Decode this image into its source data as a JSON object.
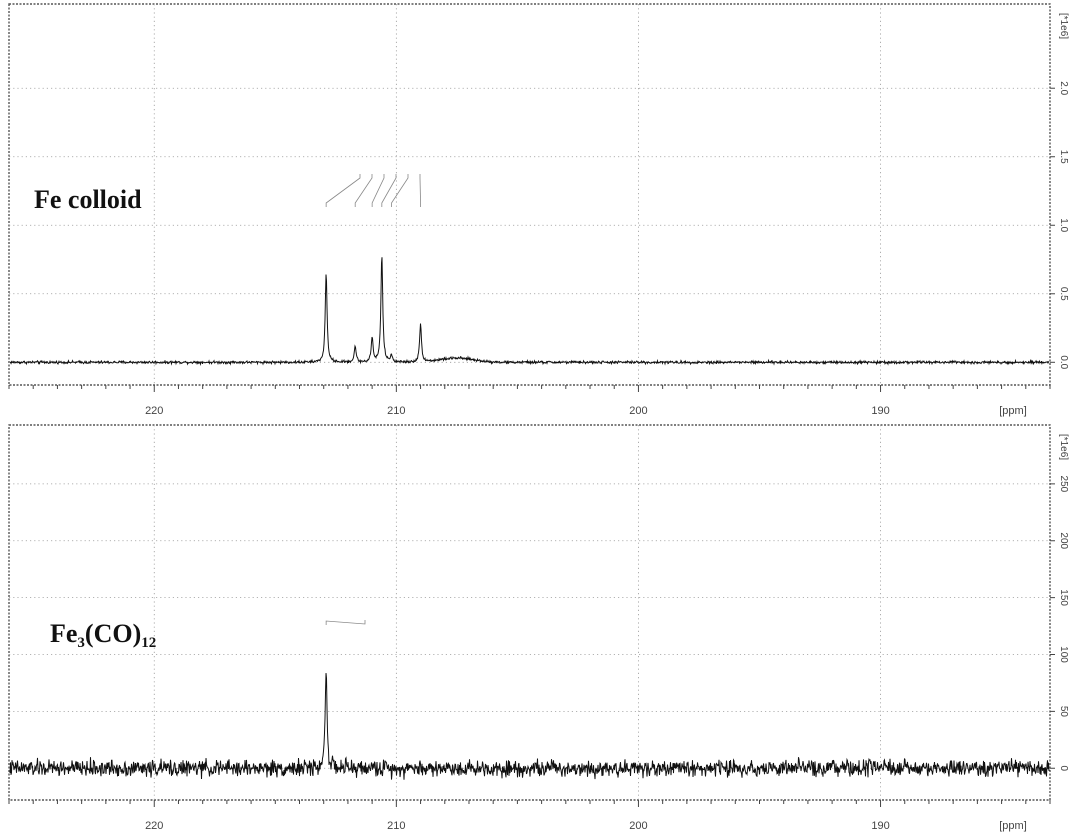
{
  "chart_data": [
    {
      "type": "line",
      "header_line1": "",
      "header_line2": "",
      "sample_label": "Fe colloid",
      "xaxis": {
        "range": [
          226,
          183
        ],
        "reversed": true,
        "ticks": [
          220,
          210,
          200,
          190
        ],
        "tick_labels": [
          "220",
          "210",
          "200",
          "190"
        ],
        "unit_label": "[ppm]"
      },
      "yaxis": {
        "range": [
          -0.1,
          2.6
        ],
        "ticks": [
          0.0,
          0.5,
          1.0,
          1.5,
          2.0
        ],
        "tick_labels": [
          "0.0",
          "0.5",
          "1.0",
          "1.5",
          "2.0"
        ],
        "scale_label": "[*1e6]"
      },
      "grid": true,
      "baseline": 0.0,
      "noise": 0.008,
      "peaks": [
        {
          "ppm": 212.9,
          "intensity": 0.65
        },
        {
          "ppm": 211.7,
          "intensity": 0.12
        },
        {
          "ppm": 211.0,
          "intensity": 0.18
        },
        {
          "ppm": 210.6,
          "intensity": 0.78
        },
        {
          "ppm": 210.2,
          "intensity": 0.05
        },
        {
          "ppm": 209.0,
          "intensity": 0.28
        }
      ],
      "broad_bump": {
        "ppm": 207.5,
        "intensity": 0.03,
        "width": 1.0
      },
      "peak_labels": [
        "",
        "",
        "",
        "",
        "",
        ""
      ]
    },
    {
      "type": "line",
      "header_line1": "",
      "header_line2": "",
      "sample_label": "Fe",
      "sample_label_parts": [
        {
          "text": "Fe",
          "sub": false
        },
        {
          "text": "3",
          "sub": true
        },
        {
          "text": "(CO)",
          "sub": false
        },
        {
          "text": "12",
          "sub": true
        }
      ],
      "xaxis": {
        "range": [
          226,
          183
        ],
        "reversed": true,
        "ticks": [
          220,
          210,
          200,
          190
        ],
        "tick_labels": [
          "220",
          "210",
          "200",
          "190"
        ],
        "unit_label": "[ppm]"
      },
      "yaxis": {
        "range": [
          -20,
          300
        ],
        "ticks": [
          0,
          50,
          100,
          150,
          200,
          250
        ],
        "tick_labels": [
          "0",
          "50",
          "100",
          "150",
          "200",
          "250"
        ],
        "scale_label": "[*1e6]"
      },
      "grid": true,
      "baseline": 0,
      "noise": 6,
      "peaks": [
        {
          "ppm": 212.9,
          "intensity": 90
        }
      ],
      "peak_labels": [
        ""
      ]
    }
  ]
}
